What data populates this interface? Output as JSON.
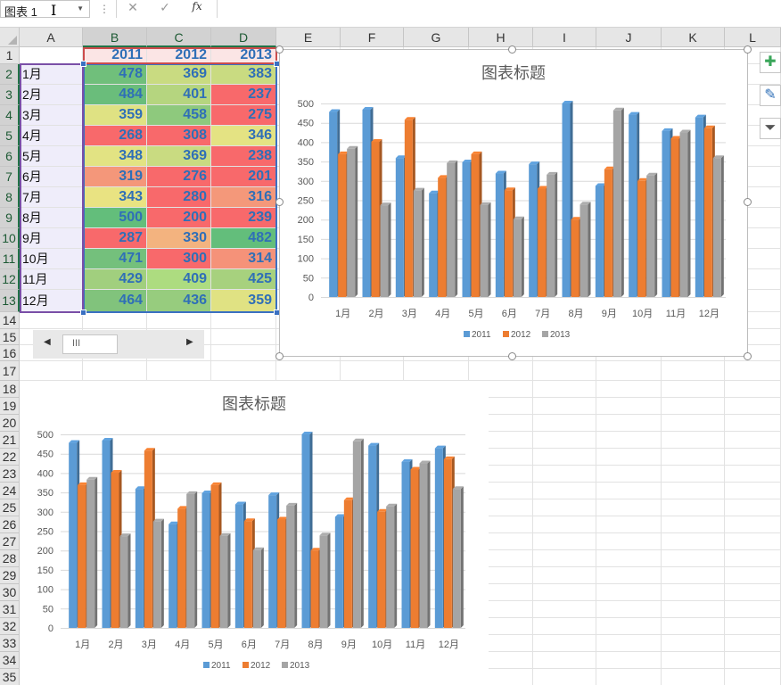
{
  "formula_bar": {
    "name_box": "图表 1",
    "cancel_icon": "✕",
    "enter_icon": "✓",
    "fx_label": "fx"
  },
  "columns": [
    "A",
    "B",
    "C",
    "D",
    "E",
    "F",
    "G",
    "H",
    "I",
    "J",
    "K",
    "L"
  ],
  "rows": [
    "1",
    "2",
    "3",
    "4",
    "5",
    "6",
    "7",
    "8",
    "9",
    "10",
    "11",
    "12",
    "13",
    "14",
    "15",
    "16",
    "17",
    "18",
    "19",
    "20",
    "21",
    "22",
    "23",
    "24",
    "25",
    "26",
    "27",
    "28",
    "29",
    "30",
    "31",
    "32",
    "33",
    "34",
    "35"
  ],
  "table": {
    "headers": [
      "2011",
      "2012",
      "2013"
    ],
    "months": [
      "1月",
      "2月",
      "3月",
      "4月",
      "5月",
      "6月",
      "7月",
      "8月",
      "9月",
      "10月",
      "11月",
      "12月"
    ],
    "values": [
      [
        "478",
        "369",
        "383"
      ],
      [
        "484",
        "401",
        "237"
      ],
      [
        "359",
        "458",
        "275"
      ],
      [
        "268",
        "308",
        "346"
      ],
      [
        "348",
        "369",
        "238"
      ],
      [
        "319",
        "276",
        "201"
      ],
      [
        "343",
        "280",
        "316"
      ],
      [
        "500",
        "200",
        "239"
      ],
      [
        "287",
        "330",
        "482"
      ],
      [
        "471",
        "300",
        "314"
      ],
      [
        "429",
        "409",
        "425"
      ],
      [
        "464",
        "436",
        "359"
      ]
    ],
    "cell_colors": [
      [
        "#70bf7b",
        "#c9db81",
        "#c9db81"
      ],
      [
        "#6abd7b",
        "#b5d57f",
        "#f8696b"
      ],
      [
        "#dfe283",
        "#8ec97d",
        "#f8696b"
      ],
      [
        "#f8696b",
        "#f8696b",
        "#e4e383"
      ],
      [
        "#e2e383",
        "#c9db81",
        "#f8696b"
      ],
      [
        "#f4977a",
        "#f8696b",
        "#f8696b"
      ],
      [
        "#e9e382",
        "#f8696b",
        "#f4987a"
      ],
      [
        "#63be7b",
        "#f8696b",
        "#f8696b"
      ],
      [
        "#f8696b",
        "#f3b37f",
        "#63be7b"
      ],
      [
        "#74c07c",
        "#f8696b",
        "#f59279"
      ],
      [
        "#a1cf7e",
        "#addc80",
        "#a7d17e"
      ],
      [
        "#81c37c",
        "#97cc7e",
        "#e0e283"
      ]
    ]
  },
  "chart_data": [
    {
      "type": "bar",
      "title": "图表标题",
      "categories": [
        "1月",
        "2月",
        "3月",
        "4月",
        "5月",
        "6月",
        "7月",
        "8月",
        "9月",
        "10月",
        "11月",
        "12月"
      ],
      "series": [
        {
          "name": "2011",
          "color": "#5b9bd5",
          "values": [
            478,
            484,
            359,
            268,
            348,
            319,
            343,
            500,
            287,
            471,
            429,
            464
          ]
        },
        {
          "name": "2012",
          "color": "#ed7d31",
          "values": [
            369,
            401,
            458,
            308,
            369,
            276,
            280,
            200,
            330,
            300,
            409,
            436
          ]
        },
        {
          "name": "2013",
          "color": "#a5a5a5",
          "values": [
            383,
            237,
            275,
            346,
            238,
            201,
            316,
            239,
            482,
            314,
            425,
            359
          ]
        }
      ],
      "yticks": [
        "0",
        "50",
        "100",
        "150",
        "200",
        "250",
        "300",
        "350",
        "400",
        "450",
        "500"
      ],
      "ylim": [
        0,
        500
      ],
      "legend": "bottom",
      "grid": true
    },
    {
      "type": "bar",
      "title": "图表标题",
      "categories": [
        "1月",
        "2月",
        "3月",
        "4月",
        "5月",
        "6月",
        "7月",
        "8月",
        "9月",
        "10月",
        "11月",
        "12月"
      ],
      "series": [
        {
          "name": "2011",
          "color": "#5b9bd5",
          "values": [
            478,
            484,
            359,
            268,
            348,
            319,
            343,
            500,
            287,
            471,
            429,
            464
          ]
        },
        {
          "name": "2012",
          "color": "#ed7d31",
          "values": [
            369,
            401,
            458,
            308,
            369,
            276,
            280,
            200,
            330,
            300,
            409,
            436
          ]
        },
        {
          "name": "2013",
          "color": "#a5a5a5",
          "values": [
            383,
            237,
            275,
            346,
            238,
            201,
            316,
            239,
            482,
            314,
            425,
            359
          ]
        }
      ],
      "yticks": [
        "0",
        "50",
        "100",
        "150",
        "200",
        "250",
        "300",
        "350",
        "400",
        "450",
        "500"
      ],
      "ylim": [
        0,
        500
      ],
      "legend": "bottom",
      "grid": true
    }
  ],
  "side_buttons": {
    "add": "✚",
    "brush": "✎",
    "filter": "⏷"
  },
  "scroll": {
    "left": "◀",
    "right": "▶",
    "grip": "III"
  }
}
